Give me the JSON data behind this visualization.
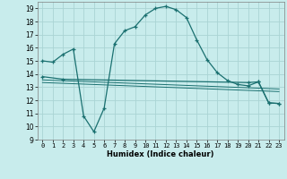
{
  "xlabel": "Humidex (Indice chaleur)",
  "ylabel": "",
  "background_color": "#c8ecec",
  "grid_color": "#aad4d4",
  "line_color": "#1a7070",
  "xlim": [
    -0.5,
    23.5
  ],
  "ylim": [
    9,
    19.5
  ],
  "yticks": [
    9,
    10,
    11,
    12,
    13,
    14,
    15,
    16,
    17,
    18,
    19
  ],
  "xticks": [
    0,
    1,
    2,
    3,
    4,
    5,
    6,
    7,
    8,
    9,
    10,
    11,
    12,
    13,
    14,
    15,
    16,
    17,
    18,
    19,
    20,
    21,
    22,
    23
  ],
  "curve1_x": [
    0,
    1,
    2,
    3,
    4,
    5,
    6,
    7,
    8,
    9,
    10,
    11,
    12,
    13,
    14,
    15,
    16,
    17,
    18,
    19,
    20,
    21,
    22,
    23
  ],
  "curve1_y": [
    15.0,
    14.9,
    15.5,
    15.9,
    10.8,
    9.6,
    11.4,
    16.3,
    17.3,
    17.6,
    18.5,
    19.0,
    19.15,
    18.9,
    18.3,
    16.6,
    15.1,
    14.1,
    13.5,
    13.2,
    13.1,
    13.4,
    11.8,
    11.75
  ],
  "curve2_x": [
    0,
    2,
    20,
    21,
    22,
    23
  ],
  "curve2_y": [
    13.8,
    13.6,
    13.35,
    13.4,
    11.8,
    11.75
  ],
  "curve3_x": [
    0,
    1,
    2,
    3,
    4,
    5,
    6,
    7,
    8,
    9,
    10,
    11,
    12,
    13,
    14,
    15,
    16,
    17,
    18,
    19,
    20,
    21,
    22,
    23
  ],
  "curve3_y": [
    13.55,
    13.52,
    13.49,
    13.46,
    13.43,
    13.4,
    13.37,
    13.34,
    13.31,
    13.28,
    13.25,
    13.22,
    13.19,
    13.16,
    13.13,
    13.1,
    13.07,
    13.04,
    13.01,
    12.98,
    12.95,
    12.92,
    12.89,
    12.86
  ],
  "curve4_x": [
    0,
    1,
    2,
    3,
    4,
    5,
    6,
    7,
    8,
    9,
    10,
    11,
    12,
    13,
    14,
    15,
    16,
    17,
    18,
    19,
    20,
    21,
    22,
    23
  ],
  "curve4_y": [
    13.35,
    13.32,
    13.29,
    13.26,
    13.23,
    13.2,
    13.17,
    13.14,
    13.11,
    13.08,
    13.05,
    13.02,
    12.99,
    12.96,
    12.93,
    12.9,
    12.87,
    12.84,
    12.81,
    12.78,
    12.75,
    12.72,
    12.69,
    12.66
  ]
}
